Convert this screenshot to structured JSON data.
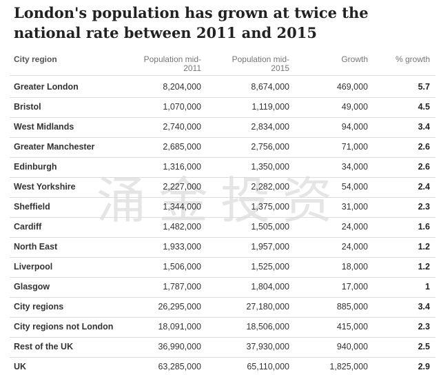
{
  "title": "London's population has grown at twice the national rate between 2011 and 2015",
  "watermark": "涌金投资",
  "table": {
    "headers": {
      "region": "City region",
      "pop2011_line1": "Population mid-",
      "pop2011_line2": "2011",
      "pop2015_line1": "Population mid-",
      "pop2015_line2": "2015",
      "growth": "Growth",
      "pct": "% growth"
    },
    "rows": [
      {
        "region": "Greater London",
        "pop2011": "8,204,000",
        "pop2015": "8,674,000",
        "growth": "469,000",
        "pct": "5.7"
      },
      {
        "region": "Bristol",
        "pop2011": "1,070,000",
        "pop2015": "1,119,000",
        "growth": "49,000",
        "pct": "4.5"
      },
      {
        "region": "West Midlands",
        "pop2011": "2,740,000",
        "pop2015": "2,834,000",
        "growth": "94,000",
        "pct": "3.4"
      },
      {
        "region": "Greater Manchester",
        "pop2011": "2,685,000",
        "pop2015": "2,756,000",
        "growth": "71,000",
        "pct": "2.6"
      },
      {
        "region": "Edinburgh",
        "pop2011": "1,316,000",
        "pop2015": "1,350,000",
        "growth": "34,000",
        "pct": "2.6"
      },
      {
        "region": "West Yorkshire",
        "pop2011": "2,227,000",
        "pop2015": "2,282,000",
        "growth": "54,000",
        "pct": "2.4"
      },
      {
        "region": "Sheffield",
        "pop2011": "1,344,000",
        "pop2015": "1,375,000",
        "growth": "31,000",
        "pct": "2.3"
      },
      {
        "region": "Cardiff",
        "pop2011": "1,482,000",
        "pop2015": "1,505,000",
        "growth": "24,000",
        "pct": "1.6"
      },
      {
        "region": "North East",
        "pop2011": "1,933,000",
        "pop2015": "1,957,000",
        "growth": "24,000",
        "pct": "1.2"
      },
      {
        "region": "Liverpool",
        "pop2011": "1,506,000",
        "pop2015": "1,525,000",
        "growth": "18,000",
        "pct": "1.2"
      },
      {
        "region": "Glasgow",
        "pop2011": "1,787,000",
        "pop2015": "1,804,000",
        "growth": "17,000",
        "pct": "1"
      },
      {
        "region": "City regions",
        "pop2011": "26,295,000",
        "pop2015": "27,180,000",
        "growth": "885,000",
        "pct": "3.4"
      },
      {
        "region": "City regions not London",
        "pop2011": "18,091,000",
        "pop2015": "18,506,000",
        "growth": "415,000",
        "pct": "2.3"
      },
      {
        "region": "Rest of the UK",
        "pop2011": "36,990,000",
        "pop2015": "37,930,000",
        "growth": "940,000",
        "pct": "2.5"
      },
      {
        "region": "UK",
        "pop2011": "63,285,000",
        "pop2015": "65,110,000",
        "growth": "1,825,000",
        "pct": "2.9"
      }
    ]
  }
}
